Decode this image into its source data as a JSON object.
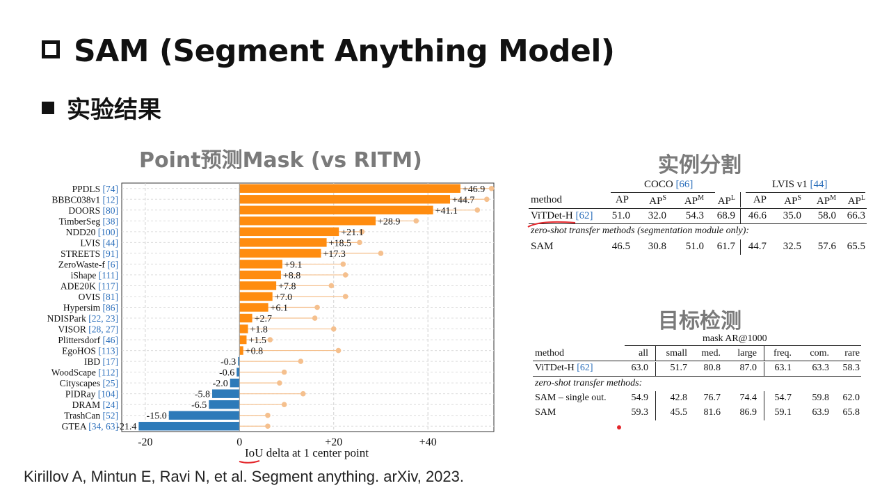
{
  "slide": {
    "title": "SAM (Segment Anything Model)",
    "subtitle": "实验结果",
    "citation": "Kirillov A, Mintun E, Ravi N, et al. Segment anything. arXiv, 2023."
  },
  "colors": {
    "positive": "#ff8c0f",
    "negative": "#2d7ab9",
    "dot": "#f5c08e",
    "ref": "#2a6ebb",
    "annotation": "#e3262b"
  },
  "chart_data": {
    "type": "bar",
    "orientation": "horizontal",
    "title": "Point预测Mask (vs RITM)",
    "xlabel": "IoU delta at 1 center point",
    "xlim": [
      -25,
      54
    ],
    "xticks": [
      -20,
      0,
      20,
      40
    ],
    "xtick_labels": [
      "-20",
      "0",
      "+20",
      "+40"
    ],
    "grid": true,
    "categories": [
      {
        "name": "PPDLS",
        "ref": "[74]"
      },
      {
        "name": "BBBC038v1",
        "ref": "[12]"
      },
      {
        "name": "DOORS",
        "ref": "[80]"
      },
      {
        "name": "TimberSeg",
        "ref": "[38]"
      },
      {
        "name": "NDD20",
        "ref": "[100]"
      },
      {
        "name": "LVIS",
        "ref": "[44]"
      },
      {
        "name": "STREETS",
        "ref": "[91]"
      },
      {
        "name": "ZeroWaste-f",
        "ref": "[6]"
      },
      {
        "name": "iShape",
        "ref": "[111]"
      },
      {
        "name": "ADE20K",
        "ref": "[117]"
      },
      {
        "name": "OVIS",
        "ref": "[81]"
      },
      {
        "name": "Hypersim",
        "ref": "[86]"
      },
      {
        "name": "NDISPark",
        "ref": "[22, 23]"
      },
      {
        "name": "VISOR",
        "ref": "[28, 27]"
      },
      {
        "name": "Plittersdorf",
        "ref": "[46]"
      },
      {
        "name": "EgoHOS",
        "ref": "[113]"
      },
      {
        "name": "IBD",
        "ref": "[17]"
      },
      {
        "name": "WoodScape",
        "ref": "[112]"
      },
      {
        "name": "Cityscapes",
        "ref": "[25]"
      },
      {
        "name": "PIDRay",
        "ref": "[104]"
      },
      {
        "name": "DRAM",
        "ref": "[24]"
      },
      {
        "name": "TrashCan",
        "ref": "[52]"
      },
      {
        "name": "GTEA",
        "ref": "[34, 63]"
      }
    ],
    "values": [
      46.9,
      44.7,
      41.1,
      28.9,
      21.1,
      18.5,
      17.3,
      9.1,
      8.8,
      7.8,
      7.0,
      6.1,
      2.7,
      1.8,
      1.5,
      0.8,
      -0.3,
      -0.6,
      -2.0,
      -5.8,
      -6.5,
      -15.0,
      -21.4
    ],
    "value_labels": [
      "+46.9",
      "+44.7",
      "+41.1",
      "+28.9",
      "+21.1",
      "+18.5",
      "+17.3",
      "+9.1",
      "+8.8",
      "+7.8",
      "+7.0",
      "+6.1",
      "+2.7",
      "+1.8",
      "+1.5",
      "+0.8",
      "-0.3",
      "-0.6",
      "-2.0",
      "-5.8",
      "-6.5",
      "-15.0",
      "-21.4"
    ],
    "dot_values": [
      53.5,
      52.5,
      50.5,
      37.5,
      26.0,
      25.5,
      30.0,
      22.0,
      22.5,
      19.5,
      22.5,
      16.5,
      16.0,
      20.0,
      6.5,
      21.0,
      13.0,
      9.5,
      8.5,
      13.5,
      9.5,
      6.0,
      6.0
    ]
  },
  "instance_seg": {
    "title": "实例分割",
    "group_coco": "COCO",
    "group_coco_ref": "[66]",
    "group_lvis": "LVIS v1",
    "group_lvis_ref": "[44]",
    "h_method": "method",
    "h_ap": "AP",
    "h_aps_base": "AP",
    "h_aps_sup": "S",
    "h_apm_base": "AP",
    "h_apm_sup": "M",
    "h_apl_base": "AP",
    "h_apl_sup": "L",
    "row1_method": "ViTDet-H",
    "row1_ref": "[62]",
    "row1_values": [
      "51.0",
      "32.0",
      "54.3",
      "68.9",
      "46.6",
      "35.0",
      "58.0",
      "66.3"
    ],
    "section_label": "zero-shot transfer methods (segmentation module only):",
    "row2_method": "SAM",
    "row2_values": [
      "46.5",
      "30.8",
      "51.0",
      "61.7",
      "44.7",
      "32.5",
      "57.6",
      "65.5"
    ]
  },
  "object_det": {
    "title": "目标检测",
    "group": "mask AR@1000",
    "headers": [
      "method",
      "all",
      "small",
      "med.",
      "large",
      "freq.",
      "com.",
      "rare"
    ],
    "row1_method": "ViTDet-H",
    "row1_ref": "[62]",
    "row1_values": [
      "63.0",
      "51.7",
      "80.8",
      "87.0",
      "63.1",
      "63.3",
      "58.3"
    ],
    "section_label": "zero-shot transfer methods:",
    "row2_method": "SAM – single out.",
    "row2_values": [
      "54.9",
      "42.8",
      "76.7",
      "74.4",
      "54.7",
      "59.8",
      "62.0"
    ],
    "row3_method": "SAM",
    "row3_values": [
      "59.3",
      "45.5",
      "81.6",
      "86.9",
      "59.1",
      "63.9",
      "65.8"
    ]
  }
}
